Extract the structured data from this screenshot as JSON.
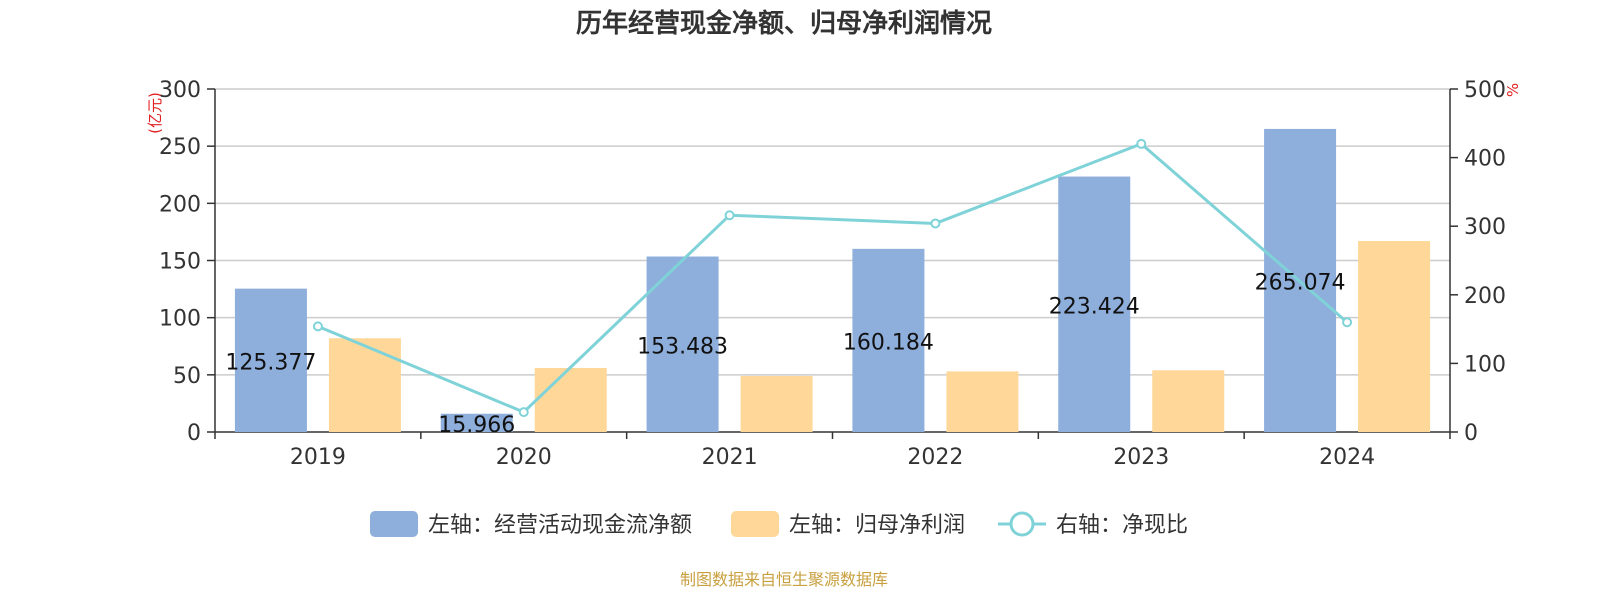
{
  "chart_data": {
    "type": "bar",
    "title": "历年经营现金净额、归母净利润情况",
    "categories": [
      "2019",
      "2020",
      "2021",
      "2022",
      "2023",
      "2024"
    ],
    "series": [
      {
        "name": "左轴：经营活动现金流净额",
        "axis": "left",
        "kind": "bar",
        "color": "#8eaedb",
        "values": [
          125.377,
          15.966,
          153.483,
          160.184,
          223.424,
          265.074
        ],
        "labels": [
          "125.377",
          "15.966",
          "153.483",
          "160.184",
          "223.424",
          "265.074"
        ]
      },
      {
        "name": "左轴：归母净利润",
        "axis": "left",
        "kind": "bar",
        "color": "#ffd899",
        "values": [
          82,
          56,
          49,
          53,
          54,
          167
        ]
      },
      {
        "name": "右轴：净现比",
        "axis": "right",
        "kind": "line",
        "color": "#7fd3d8",
        "values": [
          154,
          29,
          316,
          304,
          420,
          160
        ]
      }
    ],
    "left_axis": {
      "unit": "(亿元)",
      "ylim": [
        0,
        300
      ],
      "ticks": [
        0,
        50,
        100,
        150,
        200,
        250,
        300
      ]
    },
    "right_axis": {
      "unit": "%",
      "ylim": [
        0,
        500
      ],
      "ticks": [
        0,
        100,
        200,
        300,
        400,
        500
      ]
    },
    "grid": true,
    "legend": "bottom-center",
    "source": "制图数据来自恒生聚源数据库"
  }
}
